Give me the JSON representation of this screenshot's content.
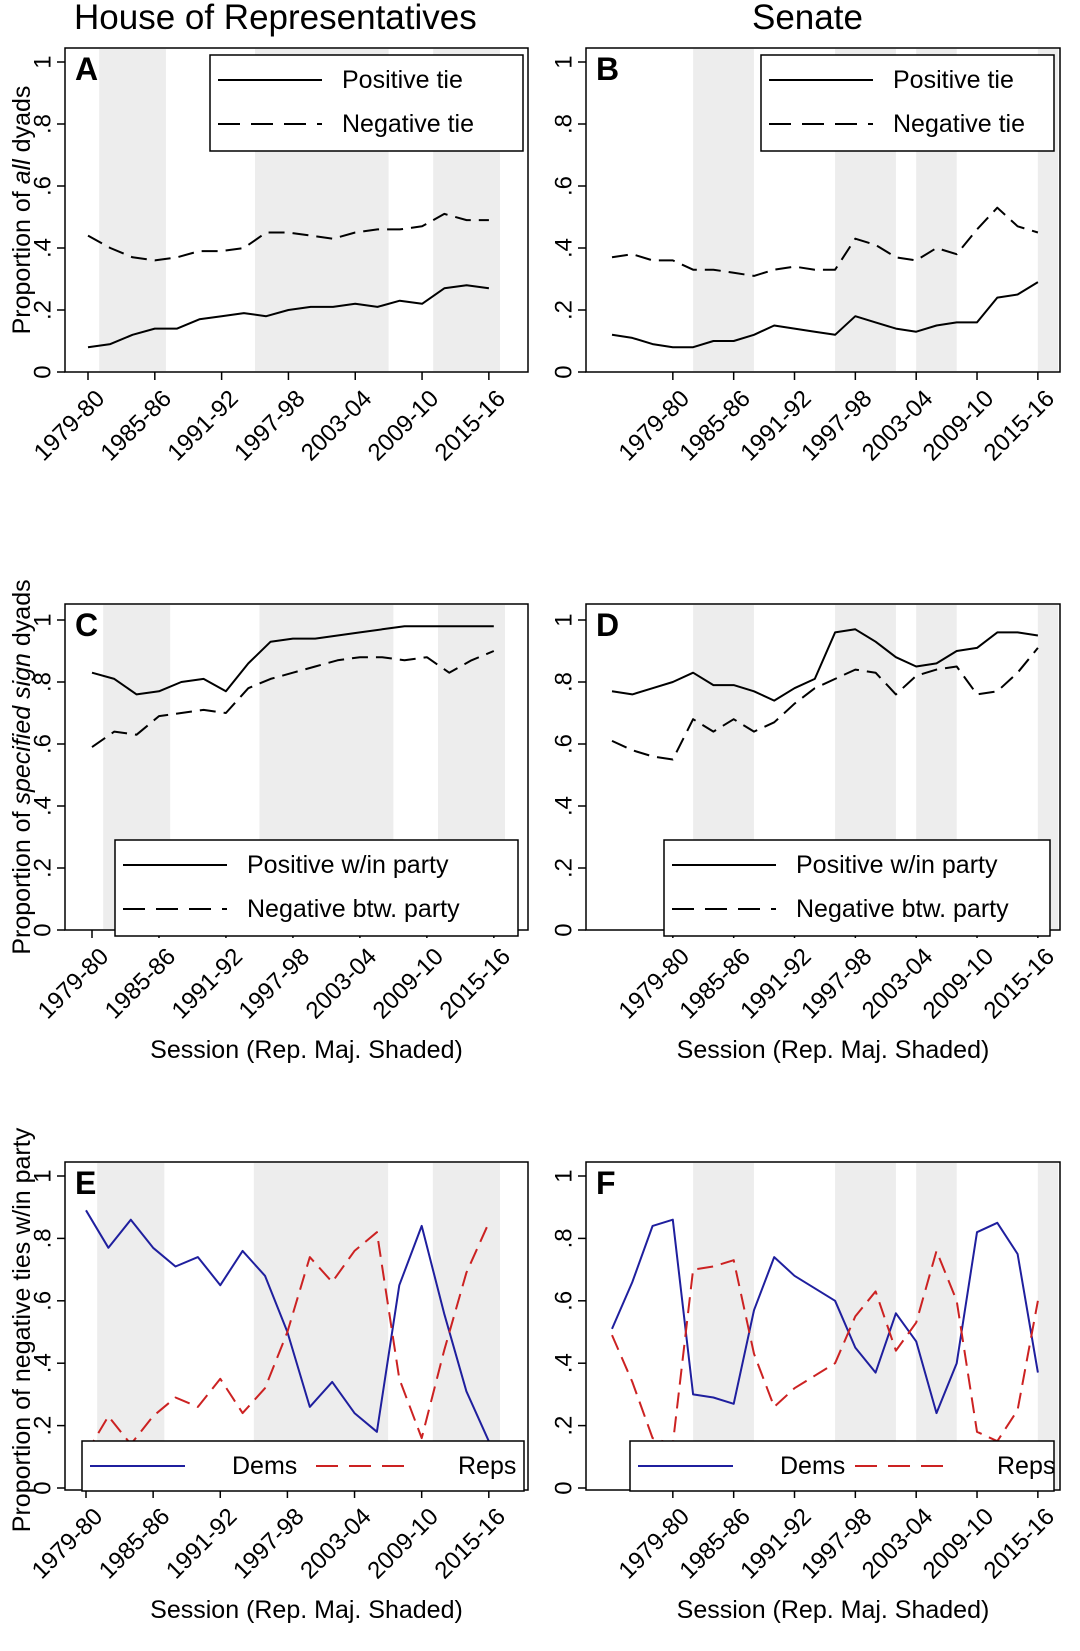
{
  "titles": {
    "house": "House of Representatives",
    "senate": "Senate"
  },
  "ylabels": {
    "row1": [
      "Proportion of ",
      "all",
      " dyads"
    ],
    "row2": [
      "Proportion of ",
      "specified sign",
      " dyads"
    ],
    "row3": [
      "Proportion of negative ties w/in party"
    ]
  },
  "colors": {
    "shade": "#ededed",
    "black": "#000000",
    "dems": "#1f1f9e",
    "reps": "#cc2222"
  },
  "chart_data": [
    {
      "id": "A",
      "type": "line",
      "chamber": "House of Representatives",
      "xlabel": "",
      "ylabel": "Proportion of all dyads",
      "xlim": [
        1979,
        2016
      ],
      "ylim": [
        0,
        1
      ],
      "x": [
        1979,
        1981,
        1983,
        1985,
        1987,
        1989,
        1991,
        1993,
        1995,
        1997,
        1999,
        2001,
        2003,
        2005,
        2007,
        2009,
        2011,
        2013,
        2015
      ],
      "xticks": [
        {
          "x": 1979,
          "label": "1979-80"
        },
        {
          "x": 1985,
          "label": "1985-86"
        },
        {
          "x": 1991,
          "label": "1991-92"
        },
        {
          "x": 1997,
          "label": "1997-98"
        },
        {
          "x": 2003,
          "label": "2003-04"
        },
        {
          "x": 2009,
          "label": "2009-10"
        },
        {
          "x": 2015,
          "label": "2015-16"
        }
      ],
      "yticks": [
        {
          "v": 0,
          "label": "0"
        },
        {
          "v": 0.2,
          "label": ".2"
        },
        {
          "v": 0.4,
          "label": ".4"
        },
        {
          "v": 0.6,
          "label": ".6"
        },
        {
          "v": 0.8,
          "label": ".8"
        },
        {
          "v": 1,
          "label": "1"
        }
      ],
      "shaded": [
        [
          1980,
          1986
        ],
        [
          1994,
          2006
        ],
        [
          2010,
          2016
        ]
      ],
      "legend_position": "top-right",
      "series": [
        {
          "name": "Positive tie",
          "style": "solid",
          "color": "#000000",
          "values": [
            0.08,
            0.09,
            0.12,
            0.14,
            0.14,
            0.17,
            0.18,
            0.19,
            0.18,
            0.2,
            0.21,
            0.21,
            0.22,
            0.21,
            0.23,
            0.22,
            0.27,
            0.28,
            0.27
          ]
        },
        {
          "name": "Negative tie",
          "style": "dashed",
          "color": "#000000",
          "values": [
            0.44,
            0.4,
            0.37,
            0.36,
            0.37,
            0.39,
            0.39,
            0.4,
            0.45,
            0.45,
            0.44,
            0.43,
            0.45,
            0.46,
            0.46,
            0.47,
            0.51,
            0.49,
            0.49
          ]
        }
      ]
    },
    {
      "id": "B",
      "type": "line",
      "chamber": "Senate",
      "xlabel": "",
      "ylabel": "",
      "xlim": [
        1973,
        2016
      ],
      "ylim": [
        0,
        1
      ],
      "x": [
        1973,
        1975,
        1977,
        1979,
        1981,
        1983,
        1985,
        1987,
        1989,
        1991,
        1993,
        1995,
        1997,
        1999,
        2001,
        2003,
        2005,
        2007,
        2009,
        2011,
        2013,
        2015
      ],
      "xticks": [
        {
          "x": 1979,
          "label": "1979-80"
        },
        {
          "x": 1985,
          "label": "1985-86"
        },
        {
          "x": 1991,
          "label": "1991-92"
        },
        {
          "x": 1997,
          "label": "1997-98"
        },
        {
          "x": 2003,
          "label": "2003-04"
        },
        {
          "x": 2009,
          "label": "2009-10"
        },
        {
          "x": 2015,
          "label": "2015-16"
        }
      ],
      "yticks": [
        {
          "v": 0,
          "label": "0"
        },
        {
          "v": 0.2,
          "label": ".2"
        },
        {
          "v": 0.4,
          "label": ".4"
        },
        {
          "v": 0.6,
          "label": ".6"
        },
        {
          "v": 0.8,
          "label": ".8"
        },
        {
          "v": 1,
          "label": "1"
        }
      ],
      "shaded": [
        [
          1981,
          1987
        ],
        [
          1995,
          2001
        ],
        [
          2003,
          2007
        ],
        [
          2015,
          2017
        ]
      ],
      "legend_position": "top-right",
      "series": [
        {
          "name": "Positive tie",
          "style": "solid",
          "color": "#000000",
          "values": [
            0.12,
            0.11,
            0.09,
            0.08,
            0.08,
            0.1,
            0.1,
            0.12,
            0.15,
            0.14,
            0.13,
            0.12,
            0.18,
            0.16,
            0.14,
            0.13,
            0.15,
            0.16,
            0.16,
            0.24,
            0.25,
            0.29
          ]
        },
        {
          "name": "Negative tie",
          "style": "dashed",
          "color": "#000000",
          "values": [
            0.37,
            0.38,
            0.36,
            0.36,
            0.33,
            0.33,
            0.32,
            0.31,
            0.33,
            0.34,
            0.33,
            0.33,
            0.43,
            0.41,
            0.37,
            0.36,
            0.4,
            0.38,
            0.46,
            0.53,
            0.47,
            0.45
          ]
        }
      ]
    },
    {
      "id": "C",
      "type": "line",
      "chamber": "House of Representatives",
      "xlabel": "Session (Rep. Maj. Shaded)",
      "ylabel": "Proportion of specified sign dyads",
      "xlim": [
        1979,
        2016
      ],
      "ylim": [
        0,
        1
      ],
      "x": [
        1979,
        1981,
        1983,
        1985,
        1987,
        1989,
        1991,
        1993,
        1995,
        1997,
        1999,
        2001,
        2003,
        2005,
        2007,
        2009,
        2011,
        2013,
        2015
      ],
      "xticks": [
        {
          "x": 1979,
          "label": "1979-80"
        },
        {
          "x": 1985,
          "label": "1985-86"
        },
        {
          "x": 1991,
          "label": "1991-92"
        },
        {
          "x": 1997,
          "label": "1997-98"
        },
        {
          "x": 2003,
          "label": "2003-04"
        },
        {
          "x": 2009,
          "label": "2009-10"
        },
        {
          "x": 2015,
          "label": "2015-16"
        }
      ],
      "yticks": [
        {
          "v": 0,
          "label": "0"
        },
        {
          "v": 0.2,
          "label": ".2"
        },
        {
          "v": 0.4,
          "label": ".4"
        },
        {
          "v": 0.6,
          "label": ".6"
        },
        {
          "v": 0.8,
          "label": ".8"
        },
        {
          "v": 1,
          "label": "1"
        }
      ],
      "shaded": [
        [
          1980,
          1986
        ],
        [
          1994,
          2006
        ],
        [
          2010,
          2016
        ]
      ],
      "legend_position": "bottom",
      "series": [
        {
          "name": "Positive w/in party",
          "style": "solid",
          "color": "#000000",
          "values": [
            0.83,
            0.81,
            0.76,
            0.77,
            0.8,
            0.81,
            0.77,
            0.86,
            0.93,
            0.94,
            0.94,
            0.95,
            0.96,
            0.97,
            0.98,
            0.98,
            0.98,
            0.98,
            0.98
          ]
        },
        {
          "name": "Negative btw. party",
          "style": "dashed",
          "color": "#000000",
          "values": [
            0.59,
            0.64,
            0.63,
            0.69,
            0.7,
            0.71,
            0.7,
            0.78,
            0.81,
            0.83,
            0.85,
            0.87,
            0.88,
            0.88,
            0.87,
            0.88,
            0.83,
            0.87,
            0.9
          ]
        }
      ]
    },
    {
      "id": "D",
      "type": "line",
      "chamber": "Senate",
      "xlabel": "Session (Rep. Maj. Shaded)",
      "ylabel": "",
      "xlim": [
        1973,
        2016
      ],
      "ylim": [
        0,
        1
      ],
      "x": [
        1973,
        1975,
        1977,
        1979,
        1981,
        1983,
        1985,
        1987,
        1989,
        1991,
        1993,
        1995,
        1997,
        1999,
        2001,
        2003,
        2005,
        2007,
        2009,
        2011,
        2013,
        2015
      ],
      "xticks": [
        {
          "x": 1979,
          "label": "1979-80"
        },
        {
          "x": 1985,
          "label": "1985-86"
        },
        {
          "x": 1991,
          "label": "1991-92"
        },
        {
          "x": 1997,
          "label": "1997-98"
        },
        {
          "x": 2003,
          "label": "2003-04"
        },
        {
          "x": 2009,
          "label": "2009-10"
        },
        {
          "x": 2015,
          "label": "2015-16"
        }
      ],
      "yticks": [
        {
          "v": 0,
          "label": "0"
        },
        {
          "v": 0.2,
          "label": ".2"
        },
        {
          "v": 0.4,
          "label": ".4"
        },
        {
          "v": 0.6,
          "label": ".6"
        },
        {
          "v": 0.8,
          "label": ".8"
        },
        {
          "v": 1,
          "label": "1"
        }
      ],
      "shaded": [
        [
          1981,
          1987
        ],
        [
          1995,
          2001
        ],
        [
          2003,
          2007
        ],
        [
          2015,
          2017
        ]
      ],
      "legend_position": "bottom",
      "series": [
        {
          "name": "Positive w/in party",
          "style": "solid",
          "color": "#000000",
          "values": [
            0.77,
            0.76,
            0.78,
            0.8,
            0.83,
            0.79,
            0.79,
            0.77,
            0.74,
            0.78,
            0.81,
            0.96,
            0.97,
            0.93,
            0.88,
            0.85,
            0.86,
            0.9,
            0.91,
            0.96,
            0.96,
            0.95
          ]
        },
        {
          "name": "Negative btw. party",
          "style": "dashed",
          "color": "#000000",
          "values": [
            0.61,
            0.58,
            0.56,
            0.55,
            0.68,
            0.64,
            0.68,
            0.64,
            0.67,
            0.73,
            0.78,
            0.81,
            0.84,
            0.83,
            0.76,
            0.82,
            0.84,
            0.85,
            0.76,
            0.77,
            0.83,
            0.91
          ]
        }
      ]
    },
    {
      "id": "E",
      "type": "line",
      "chamber": "House of Representatives",
      "xlabel": "Session (Rep. Maj. Shaded)",
      "ylabel": "Proportion of negative ties w/in party",
      "xlim": [
        1979,
        2016
      ],
      "ylim": [
        0,
        1
      ],
      "x": [
        1979,
        1981,
        1983,
        1985,
        1987,
        1989,
        1991,
        1993,
        1995,
        1997,
        1999,
        2001,
        2003,
        2005,
        2007,
        2009,
        2011,
        2013,
        2015
      ],
      "xticks": [
        {
          "x": 1979,
          "label": "1979-80"
        },
        {
          "x": 1985,
          "label": "1985-86"
        },
        {
          "x": 1991,
          "label": "1991-92"
        },
        {
          "x": 1997,
          "label": "1997-98"
        },
        {
          "x": 2003,
          "label": "2003-04"
        },
        {
          "x": 2009,
          "label": "2009-10"
        },
        {
          "x": 2015,
          "label": "2015-16"
        }
      ],
      "yticks": [
        {
          "v": 0,
          "label": "0"
        },
        {
          "v": 0.2,
          "label": ".2"
        },
        {
          "v": 0.4,
          "label": ".4"
        },
        {
          "v": 0.6,
          "label": ".6"
        },
        {
          "v": 0.8,
          "label": ".8"
        },
        {
          "v": 1,
          "label": "1"
        }
      ],
      "shaded": [
        [
          1980,
          1986
        ],
        [
          1994,
          2006
        ],
        [
          2010,
          2016
        ]
      ],
      "legend_position": "bottom",
      "series": [
        {
          "name": "Dems",
          "style": "solid",
          "color": "#1f1f9e",
          "values": [
            0.89,
            0.77,
            0.86,
            0.77,
            0.71,
            0.74,
            0.65,
            0.76,
            0.68,
            0.5,
            0.26,
            0.34,
            0.24,
            0.18,
            0.65,
            0.84,
            0.56,
            0.31,
            0.15
          ]
        },
        {
          "name": "Reps",
          "style": "dashed",
          "color": "#cc2222",
          "values": [
            0.11,
            0.23,
            0.14,
            0.23,
            0.29,
            0.26,
            0.35,
            0.24,
            0.32,
            0.5,
            0.74,
            0.66,
            0.76,
            0.82,
            0.35,
            0.16,
            0.44,
            0.69,
            0.85
          ]
        }
      ]
    },
    {
      "id": "F",
      "type": "line",
      "chamber": "Senate",
      "xlabel": "Session (Rep. Maj. Shaded)",
      "ylabel": "",
      "xlim": [
        1973,
        2016
      ],
      "ylim": [
        0,
        1
      ],
      "x": [
        1973,
        1975,
        1977,
        1979,
        1981,
        1983,
        1985,
        1987,
        1989,
        1991,
        1993,
        1995,
        1997,
        1999,
        2001,
        2003,
        2005,
        2007,
        2009,
        2011,
        2013,
        2015
      ],
      "xticks": [
        {
          "x": 1979,
          "label": "1979-80"
        },
        {
          "x": 1985,
          "label": "1985-86"
        },
        {
          "x": 1991,
          "label": "1991-92"
        },
        {
          "x": 1997,
          "label": "1997-98"
        },
        {
          "x": 2003,
          "label": "2003-04"
        },
        {
          "x": 2009,
          "label": "2009-10"
        },
        {
          "x": 2015,
          "label": "2015-16"
        }
      ],
      "yticks": [
        {
          "v": 0,
          "label": "0"
        },
        {
          "v": 0.2,
          "label": ".2"
        },
        {
          "v": 0.4,
          "label": ".4"
        },
        {
          "v": 0.6,
          "label": ".6"
        },
        {
          "v": 0.8,
          "label": ".8"
        },
        {
          "v": 1,
          "label": "1"
        }
      ],
      "shaded": [
        [
          1981,
          1987
        ],
        [
          1995,
          2001
        ],
        [
          2003,
          2007
        ],
        [
          2015,
          2017
        ]
      ],
      "legend_position": "bottom",
      "series": [
        {
          "name": "Dems",
          "style": "solid",
          "color": "#1f1f9e",
          "values": [
            0.51,
            0.66,
            0.84,
            0.86,
            0.3,
            0.29,
            0.27,
            0.57,
            0.74,
            0.68,
            0.64,
            0.6,
            0.45,
            0.37,
            0.56,
            0.47,
            0.24,
            0.4,
            0.82,
            0.85,
            0.75,
            0.37
          ]
        },
        {
          "name": "Reps",
          "style": "dashed",
          "color": "#cc2222",
          "values": [
            0.49,
            0.34,
            0.16,
            0.14,
            0.7,
            0.71,
            0.73,
            0.43,
            0.26,
            0.32,
            0.36,
            0.4,
            0.55,
            0.63,
            0.44,
            0.53,
            0.76,
            0.6,
            0.18,
            0.15,
            0.25,
            0.6
          ]
        }
      ]
    }
  ]
}
